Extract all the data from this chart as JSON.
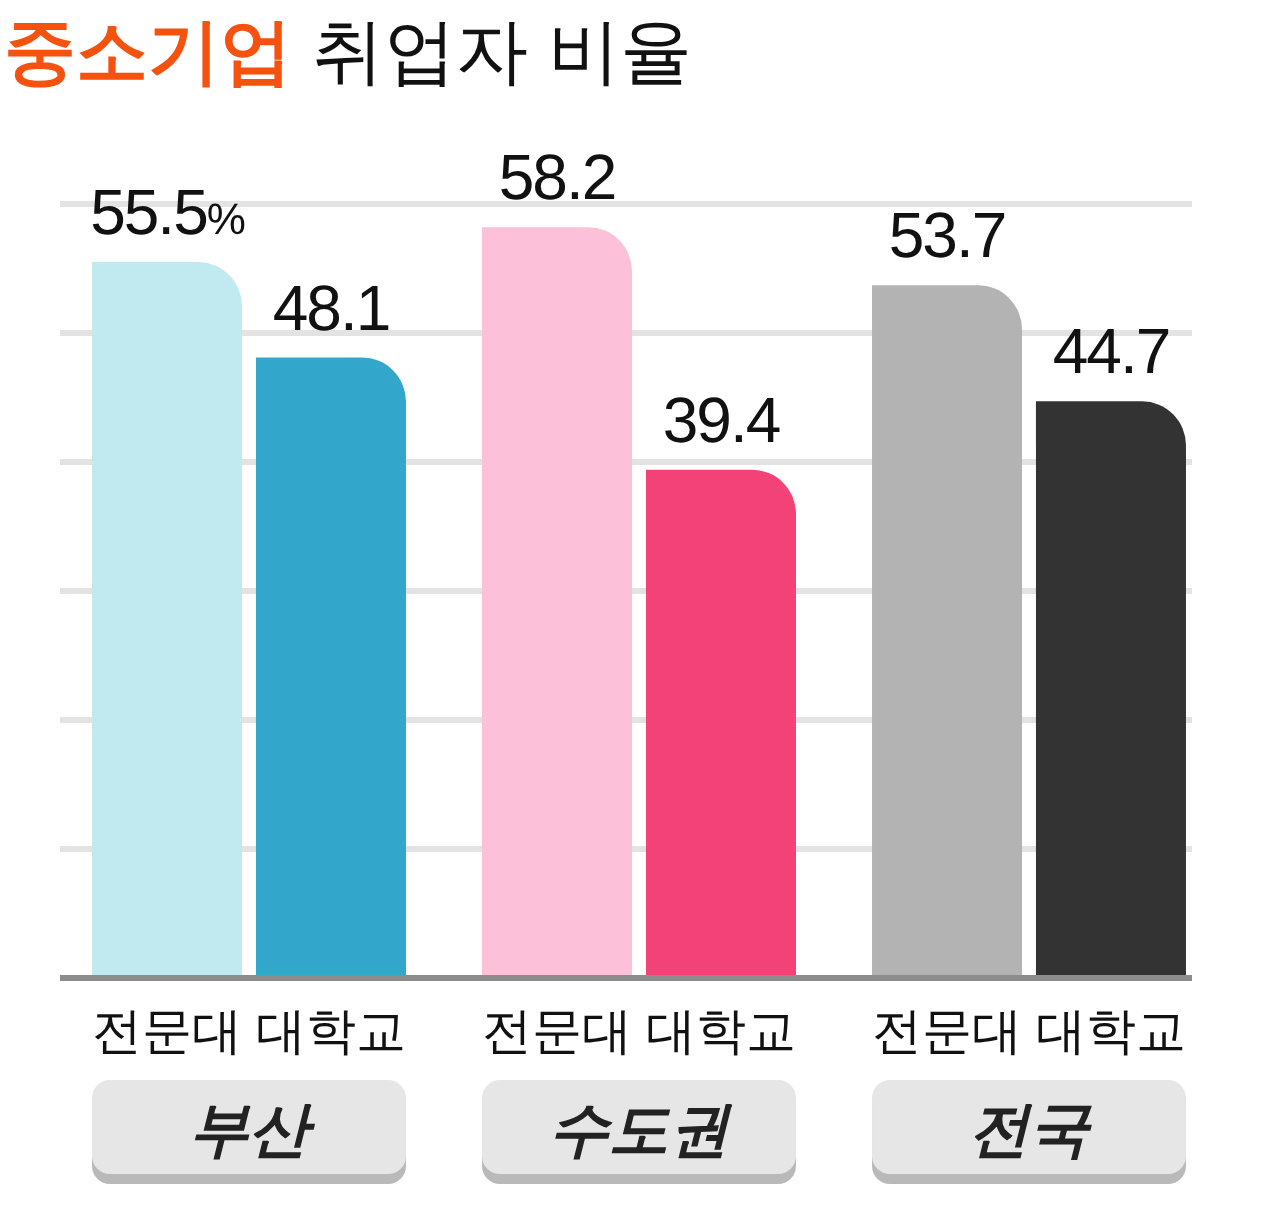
{
  "chart_data": {
    "type": "bar",
    "title": "중소기업 취업자 비율",
    "categories": [
      "부산",
      "수도권",
      "전국"
    ],
    "series": [
      {
        "name": "전문대",
        "colors": [
          "#c0eaf0",
          "#fcc0d8",
          "#b3b3b3"
        ],
        "values": [
          55.5,
          58.2,
          53.7
        ],
        "value_labels": [
          "55.5%",
          "58.2",
          "53.7"
        ]
      },
      {
        "name": "대학교",
        "colors": [
          "#33a6cc",
          "#f24277",
          "#333333"
        ],
        "values": [
          48.1,
          39.4,
          44.7
        ],
        "value_labels": [
          "48.1",
          "39.4",
          "44.7"
        ]
      }
    ],
    "ylim": [
      0,
      60
    ],
    "yticks": [
      {
        "value": 10,
        "label": null
      },
      {
        "value": 20,
        "label": null
      },
      {
        "value": 30,
        "label": null
      },
      {
        "value": 40,
        "label": null
      },
      {
        "value": 50,
        "label": null
      },
      {
        "value": 60,
        "label": null
      }
    ],
    "grid": "y",
    "tick_labels": "x"
  }
}
